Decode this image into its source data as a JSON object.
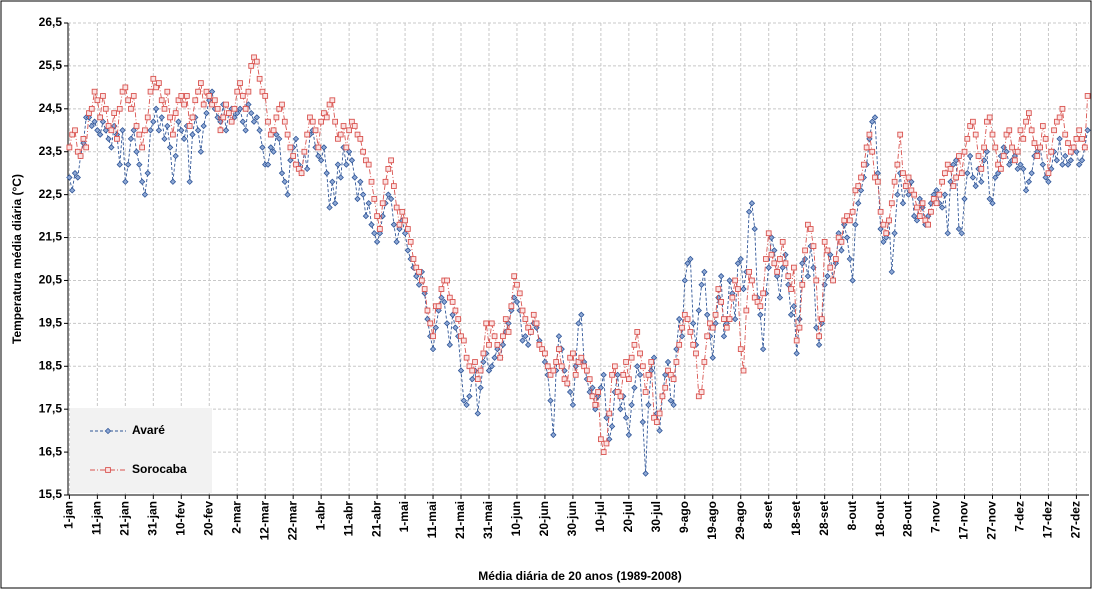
{
  "chart_data": {
    "type": "line",
    "x_label": "Média diária de 20 anos (1989-2008)",
    "y_label": "Temperatura média diária (°C)",
    "ylim": [
      15.5,
      26.5
    ],
    "yticks": [
      {
        "value": 15.5,
        "label": "15,5"
      },
      {
        "value": 16.5,
        "label": "16,5"
      },
      {
        "value": 17.5,
        "label": "17,5"
      },
      {
        "value": 18.5,
        "label": "18,5"
      },
      {
        "value": 19.5,
        "label": "19,5"
      },
      {
        "value": 20.5,
        "label": "20,5"
      },
      {
        "value": 21.5,
        "label": "21,5"
      },
      {
        "value": 22.5,
        "label": "22,5"
      },
      {
        "value": 23.5,
        "label": "23,5"
      },
      {
        "value": 24.5,
        "label": "24,5"
      },
      {
        "value": 25.5,
        "label": "25,5"
      },
      {
        "value": 26.5,
        "label": "26,5"
      }
    ],
    "grid": true,
    "legend": "lower left",
    "categories": [
      "1-jan",
      null,
      null,
      null,
      null,
      null,
      null,
      null,
      null,
      null,
      "11-jan",
      null,
      null,
      null,
      null,
      null,
      null,
      null,
      null,
      null,
      "21-jan",
      null,
      null,
      null,
      null,
      null,
      null,
      null,
      null,
      null,
      "31-jan",
      null,
      null,
      null,
      null,
      null,
      null,
      null,
      null,
      null,
      "10-fev",
      null,
      null,
      null,
      null,
      null,
      null,
      null,
      null,
      null,
      "20-fev",
      null,
      null,
      null,
      null,
      null,
      null,
      null,
      null,
      null,
      "2-mar",
      null,
      null,
      null,
      null,
      null,
      null,
      null,
      null,
      null,
      "12-mar",
      null,
      null,
      null,
      null,
      null,
      null,
      null,
      null,
      null,
      "22-mar",
      null,
      null,
      null,
      null,
      null,
      null,
      null,
      null,
      null,
      "1-abr",
      null,
      null,
      null,
      null,
      null,
      null,
      null,
      null,
      null,
      "11-abr",
      null,
      null,
      null,
      null,
      null,
      null,
      null,
      null,
      null,
      "21-abr",
      null,
      null,
      null,
      null,
      null,
      null,
      null,
      null,
      null,
      "1-mai",
      null,
      null,
      null,
      null,
      null,
      null,
      null,
      null,
      null,
      "11-mai",
      null,
      null,
      null,
      null,
      null,
      null,
      null,
      null,
      null,
      "21-mai",
      null,
      null,
      null,
      null,
      null,
      null,
      null,
      null,
      null,
      "31-mai",
      null,
      null,
      null,
      null,
      null,
      null,
      null,
      null,
      null,
      "10-jun",
      null,
      null,
      null,
      null,
      null,
      null,
      null,
      null,
      null,
      "20-jun",
      null,
      null,
      null,
      null,
      null,
      null,
      null,
      null,
      null,
      "30-jun",
      null,
      null,
      null,
      null,
      null,
      null,
      null,
      null,
      null,
      "10-jul",
      null,
      null,
      null,
      null,
      null,
      null,
      null,
      null,
      null,
      "20-jul",
      null,
      null,
      null,
      null,
      null,
      null,
      null,
      null,
      null,
      "30-jul",
      null,
      null,
      null,
      null,
      null,
      null,
      null,
      null,
      null,
      "9-ago",
      null,
      null,
      null,
      null,
      null,
      null,
      null,
      null,
      null,
      "19-ago",
      null,
      null,
      null,
      null,
      null,
      null,
      null,
      null,
      null,
      "29-ago",
      null,
      null,
      null,
      null,
      null,
      null,
      null,
      null,
      null,
      "8-set",
      null,
      null,
      null,
      null,
      null,
      null,
      null,
      null,
      null,
      "18-set",
      null,
      null,
      null,
      null,
      null,
      null,
      null,
      null,
      null,
      "28-set",
      null,
      null,
      null,
      null,
      null,
      null,
      null,
      null,
      null,
      "8-out",
      null,
      null,
      null,
      null,
      null,
      null,
      null,
      null,
      null,
      "18-out",
      null,
      null,
      null,
      null,
      null,
      null,
      null,
      null,
      null,
      "28-out",
      null,
      null,
      null,
      null,
      null,
      null,
      null,
      null,
      null,
      "7-nov",
      null,
      null,
      null,
      null,
      null,
      null,
      null,
      null,
      null,
      "17-nov",
      null,
      null,
      null,
      null,
      null,
      null,
      null,
      null,
      null,
      "27-nov",
      null,
      null,
      null,
      null,
      null,
      null,
      null,
      null,
      null,
      "7-dez",
      null,
      null,
      null,
      null,
      null,
      null,
      null,
      null,
      null,
      "17-dez",
      null,
      null,
      null,
      null,
      null,
      null,
      null,
      null,
      null,
      "27-dez",
      null,
      null,
      null,
      null
    ],
    "series": [
      {
        "name": "Avaré",
        "color": "#2f5597",
        "marker": "diamond",
        "values": [
          22.9,
          22.6,
          23.0,
          22.9,
          23.4,
          23.7,
          24.3,
          24.3,
          24.1,
          24.2,
          24.0,
          23.9,
          24.2,
          24.0,
          23.8,
          23.6,
          24.1,
          23.9,
          23.2,
          24.0,
          22.8,
          23.2,
          23.8,
          24.0,
          23.5,
          23.2,
          22.8,
          22.5,
          23.0,
          24.0,
          24.2,
          24.5,
          24.0,
          24.3,
          23.8,
          24.1,
          23.6,
          22.8,
          23.4,
          24.2,
          24.0,
          23.8,
          24.1,
          22.8,
          23.9,
          24.3,
          24.0,
          23.5,
          24.1,
          24.4,
          24.7,
          24.9,
          24.5,
          24.3,
          24.2,
          24.6,
          24.0,
          24.4,
          24.5,
          24.3,
          24.4,
          24.5,
          24.2,
          24.0,
          24.6,
          24.4,
          24.2,
          24.3,
          24.0,
          23.6,
          23.2,
          23.2,
          23.6,
          23.5,
          23.9,
          23.8,
          23.0,
          22.8,
          22.5,
          23.3,
          23.6,
          23.8,
          23.2,
          23.0,
          23.5,
          23.1,
          23.9,
          24.0,
          23.6,
          23.4,
          23.3,
          23.6,
          23.0,
          22.2,
          22.8,
          22.3,
          23.2,
          22.9,
          23.6,
          23.2,
          23.5,
          23.3,
          22.9,
          22.4,
          22.8,
          22.5,
          22.0,
          22.3,
          21.8,
          21.6,
          21.4,
          21.6,
          22.0,
          22.3,
          22.5,
          22.4,
          21.8,
          21.4,
          21.7,
          21.9,
          21.6,
          21.2,
          21.0,
          20.8,
          20.6,
          20.4,
          20.7,
          20.2,
          19.6,
          19.2,
          18.9,
          19.4,
          19.8,
          20.1,
          20.0,
          19.5,
          19.0,
          19.7,
          19.4,
          19.2,
          18.4,
          17.7,
          17.6,
          17.8,
          18.2,
          18.4,
          17.4,
          18.0,
          18.6,
          18.8,
          18.4,
          18.5,
          18.7,
          18.9,
          18.7,
          19.0,
          19.3,
          19.5,
          19.8,
          20.1,
          20.0,
          19.8,
          19.1,
          19.2,
          19.0,
          19.3,
          19.5,
          19.4,
          19.1,
          18.9,
          18.6,
          18.3,
          17.7,
          16.9,
          18.4,
          19.2,
          18.9,
          18.4,
          18.1,
          17.9,
          17.6,
          18.5,
          19.5,
          19.7,
          18.6,
          18.2,
          17.9,
          18.0,
          17.5,
          17.8,
          18.0,
          18.3,
          17.3,
          16.8,
          17.1,
          17.9,
          18.3,
          17.5,
          17.8,
          17.3,
          16.9,
          17.6,
          18.0,
          18.5,
          18.3,
          17.2,
          16.0,
          17.6,
          18.4,
          18.7,
          17.4,
          17.0,
          17.8,
          18.3,
          18.6,
          17.7,
          17.6,
          18.9,
          19.6,
          19.2,
          20.5,
          20.9,
          21.0,
          19.5,
          19.0,
          19.8,
          20.4,
          20.7,
          19.7,
          19.2,
          18.7,
          19.5,
          20.1,
          20.6,
          19.2,
          19.5,
          20.5,
          20.2,
          19.6,
          20.9,
          21.0,
          20.3,
          20.7,
          22.1,
          22.3,
          21.7,
          20.1,
          19.7,
          18.9,
          20.2,
          20.8,
          21.5,
          21.2,
          20.6,
          20.1,
          20.8,
          21.1,
          20.4,
          19.7,
          19.9,
          18.8,
          19.6,
          20.9,
          21.0,
          20.6,
          21.3,
          20.8,
          19.4,
          19.0,
          19.5,
          20.4,
          20.6,
          21.1,
          20.5,
          20.9,
          21.6,
          21.2,
          21.8,
          21.5,
          21.0,
          20.5,
          21.8,
          22.3,
          22.6,
          22.9,
          23.2,
          23.8,
          24.2,
          24.3,
          23.0,
          21.7,
          21.4,
          21.5,
          21.9,
          20.7,
          21.6,
          22.5,
          23.0,
          22.3,
          22.7,
          22.5,
          22.8,
          22.0,
          21.9,
          22.4,
          22.2,
          21.8,
          22.0,
          22.3,
          22.5,
          22.6,
          22.3,
          22.2,
          22.5,
          21.6,
          22.8,
          23.2,
          23.3,
          21.7,
          21.6,
          22.4,
          23.0,
          23.4,
          22.9,
          22.7,
          23.1,
          22.8,
          23.3,
          23.5,
          22.4,
          22.3,
          22.9,
          23.0,
          23.4,
          23.6,
          23.5,
          23.2,
          23.3,
          23.4,
          23.1,
          23.2,
          23.1,
          22.6,
          22.8,
          23.0,
          23.4,
          23.5,
          23.6,
          23.2,
          22.9,
          22.8,
          23.1,
          23.5,
          23.3,
          23.8,
          23.2,
          23.4,
          23.2,
          23.3,
          23.6,
          23.5,
          23.2,
          23.3,
          23.6,
          24.0
        ]
      },
      {
        "name": "Sorocaba",
        "color": "#d9534f",
        "marker": "square",
        "values": [
          23.6,
          23.9,
          24.0,
          23.5,
          23.4,
          23.8,
          23.6,
          24.4,
          24.5,
          24.9,
          24.7,
          24.3,
          24.8,
          24.5,
          24.1,
          24.0,
          24.4,
          23.8,
          24.5,
          24.9,
          25.0,
          24.7,
          24.5,
          24.8,
          24.1,
          23.9,
          23.6,
          24.0,
          24.3,
          24.9,
          25.2,
          25.0,
          25.1,
          24.7,
          24.5,
          24.9,
          24.3,
          23.9,
          24.4,
          24.7,
          24.8,
          24.6,
          24.8,
          24.1,
          24.3,
          24.7,
          24.9,
          25.1,
          24.6,
          24.9,
          24.8,
          24.6,
          24.7,
          24.5,
          24.0,
          24.3,
          24.6,
          24.4,
          24.2,
          24.5,
          24.9,
          25.1,
          24.8,
          24.5,
          24.9,
          25.5,
          25.7,
          25.6,
          25.2,
          24.9,
          24.8,
          24.2,
          23.9,
          24.0,
          24.3,
          24.5,
          24.6,
          24.2,
          23.9,
          23.6,
          23.4,
          23.2,
          23.1,
          23.0,
          23.5,
          23.9,
          24.3,
          24.2,
          24.0,
          23.6,
          24.2,
          24.4,
          24.3,
          24.6,
          24.7,
          24.2,
          23.8,
          23.9,
          24.1,
          23.6,
          24.0,
          24.2,
          24.1,
          23.9,
          23.8,
          23.5,
          23.3,
          23.2,
          22.8,
          22.4,
          22.0,
          21.7,
          22.3,
          22.8,
          23.1,
          23.3,
          22.7,
          22.2,
          21.8,
          22.1,
          21.9,
          21.7,
          21.4,
          21.0,
          20.8,
          20.7,
          20.5,
          20.3,
          19.8,
          19.5,
          19.2,
          19.9,
          19.9,
          20.3,
          20.5,
          20.5,
          20.1,
          20.0,
          19.8,
          19.6,
          19.2,
          19.1,
          18.7,
          18.5,
          18.4,
          18.6,
          18.2,
          18.4,
          18.8,
          19.5,
          19.0,
          19.5,
          19.2,
          19.0,
          18.7,
          19.2,
          19.6,
          19.3,
          19.9,
          20.6,
          20.4,
          20.2,
          19.8,
          19.6,
          19.4,
          19.3,
          19.7,
          19.5,
          19.0,
          18.9,
          18.8,
          18.5,
          18.3,
          18.4,
          18.6,
          18.9,
          18.5,
          18.2,
          18.1,
          18.7,
          18.8,
          18.3,
          18.6,
          18.7,
          18.5,
          18.4,
          18.2,
          17.8,
          17.6,
          17.9,
          16.8,
          16.5,
          16.7,
          17.4,
          18.3,
          18.5,
          17.9,
          17.8,
          18.3,
          18.6,
          18.2,
          18.7,
          19.0,
          19.3,
          18.8,
          18.5,
          17.9,
          18.3,
          18.6,
          17.3,
          17.2,
          17.4,
          17.8,
          18.0,
          18.4,
          18.3,
          18.2,
          18.6,
          19.0,
          19.4,
          19.7,
          19.6,
          19.3,
          19.0,
          18.8,
          17.8,
          17.9,
          18.6,
          19.2,
          19.5,
          19.4,
          19.7,
          20.3,
          20.0,
          19.6,
          19.4,
          19.6,
          20.1,
          20.5,
          20.3,
          18.9,
          18.4,
          19.8,
          20.7,
          20.5,
          20.1,
          20.0,
          19.9,
          20.2,
          21.0,
          21.6,
          21.1,
          20.9,
          20.7,
          21.0,
          21.4,
          20.9,
          20.6,
          20.3,
          20.8,
          19.1,
          19.4,
          20.4,
          21.2,
          21.8,
          21.7,
          21.3,
          20.5,
          19.2,
          19.6,
          21.4,
          21.2,
          20.8,
          20.5,
          21.0,
          21.5,
          21.4,
          21.9,
          22.0,
          21.9,
          22.1,
          22.6,
          22.7,
          22.9,
          23.2,
          23.6,
          23.9,
          23.5,
          22.9,
          22.8,
          22.1,
          21.8,
          21.6,
          21.9,
          22.3,
          22.8,
          23.2,
          23.9,
          23.0,
          22.7,
          22.9,
          22.6,
          22.5,
          22.2,
          22.0,
          22.3,
          21.9,
          21.8,
          22.1,
          22.4,
          22.3,
          22.5,
          22.8,
          23.0,
          23.2,
          23.1,
          22.7,
          22.9,
          23.4,
          23.0,
          23.5,
          23.8,
          24.1,
          24.2,
          23.9,
          23.4,
          23.1,
          23.6,
          24.2,
          24.3,
          23.9,
          23.6,
          23.2,
          23.1,
          23.4,
          23.9,
          24.0,
          23.6,
          23.3,
          23.5,
          24.0,
          23.8,
          24.2,
          24.4,
          24.0,
          23.7,
          23.4,
          23.6,
          24.1,
          23.8,
          23.0,
          23.5,
          24.0,
          24.2,
          24.3,
          24.5,
          23.9,
          23.7,
          23.5,
          23.6,
          23.8,
          24.0,
          23.8,
          23.6,
          24.8
        ]
      }
    ]
  }
}
